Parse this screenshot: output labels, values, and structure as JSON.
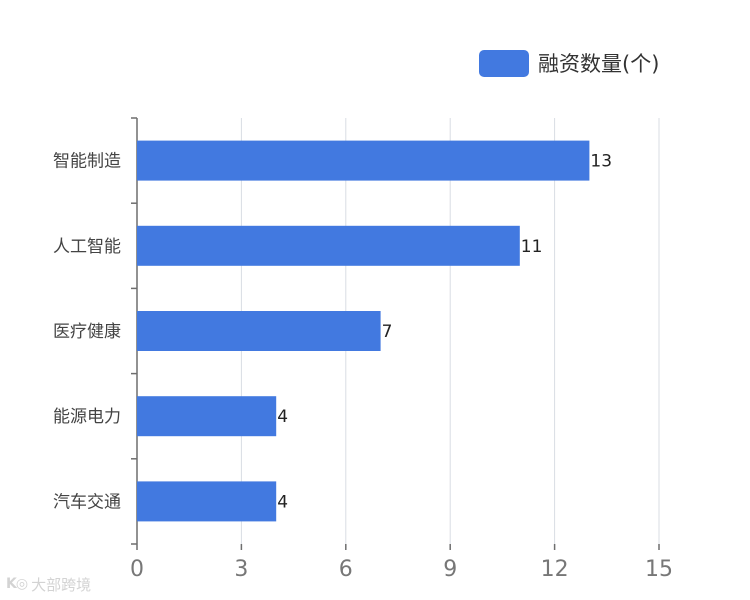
{
  "legend": {
    "label": "融资数量(个)"
  },
  "watermark": {
    "logo": "K◎",
    "text": "大部跨境"
  },
  "colors": {
    "bar": "#4279e0",
    "axis": "#6e6e6e",
    "grid": "#d9dde3",
    "category_text": "#444444",
    "tick_text": "#777777",
    "value_text": "#222222"
  },
  "chart_data": {
    "type": "bar",
    "orientation": "horizontal",
    "categories": [
      "智能制造",
      "人工智能",
      "医疗健康",
      "能源电力",
      "汽车交通"
    ],
    "series": [
      {
        "name": "融资数量(个)",
        "values": [
          13,
          11,
          7,
          4,
          4
        ]
      }
    ],
    "xlim": [
      0,
      15
    ],
    "x_ticks": [
      "0",
      "3",
      "6",
      "9",
      "12",
      "15"
    ],
    "grid": "vertical",
    "legend_position": "top-right",
    "data_labels": true
  }
}
